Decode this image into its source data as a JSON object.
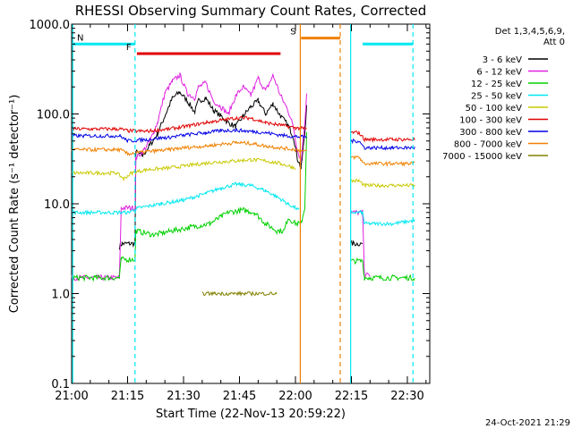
{
  "chart_data": {
    "type": "line",
    "title": "RHESSI Observing Summary Count Rates, Corrected",
    "ylabel": "Corrected Count Rate (s⁻¹ detector⁻¹)",
    "xlabel": "Start Time (22-Nov-13 20:59:22)",
    "footer": "24-Oct-2021 21:29",
    "yscale": "log",
    "ylim": [
      0.1,
      1000
    ],
    "y_ticks": [
      "1000.0",
      "100.0",
      "10.0",
      "1.0",
      "0.1"
    ],
    "y_tick_values": [
      1000,
      100,
      10,
      1,
      0.1
    ],
    "xlim_minutes": [
      0,
      96
    ],
    "x_tick_labels": [
      "21:00",
      "21:15",
      "21:30",
      "21:45",
      "22:00",
      "22:15",
      "22:30"
    ],
    "x_tick_minutes": [
      0,
      15,
      30,
      45,
      60,
      75,
      90
    ],
    "grid": false,
    "legend_position": "right",
    "legend_header": [
      "Det 1,3,4,5,6,9,",
      "Att 0"
    ],
    "series": [
      {
        "name": "3 - 6 keV",
        "color": "#000000",
        "points": [
          [
            12.8,
            3.3
          ],
          [
            13.5,
            3.6
          ],
          [
            17,
            3.6
          ],
          [
            17.2,
            38
          ],
          [
            19,
            34
          ],
          [
            21,
            45
          ],
          [
            23,
            60
          ],
          [
            25,
            95
          ],
          [
            27,
            150
          ],
          [
            29,
            175
          ],
          [
            31,
            140
          ],
          [
            33,
            105
          ],
          [
            34,
            140
          ],
          [
            36,
            150
          ],
          [
            38,
            110
          ],
          [
            40,
            95
          ],
          [
            42,
            80
          ],
          [
            44,
            72
          ],
          [
            46,
            95
          ],
          [
            48,
            120
          ],
          [
            50,
            140
          ],
          [
            52,
            100
          ],
          [
            54,
            130
          ],
          [
            56,
            95
          ],
          [
            58,
            75
          ],
          [
            59.5,
            55
          ],
          [
            60.5,
            32
          ],
          [
            61.5,
            25
          ],
          [
            62.5,
            60
          ],
          [
            63,
            130
          ]
        ],
        "after": [
          [
            74.8,
            3.6
          ],
          [
            78,
            3.6
          ]
        ]
      },
      {
        "name": "6 - 12 keV",
        "color": "#e020e0",
        "points": [
          [
            0,
            1.5
          ],
          [
            12.8,
            1.5
          ],
          [
            13.3,
            9
          ],
          [
            17,
            9
          ],
          [
            17.2,
            32
          ],
          [
            19,
            38
          ],
          [
            21,
            50
          ],
          [
            23,
            80
          ],
          [
            25,
            170
          ],
          [
            27,
            230
          ],
          [
            29,
            270
          ],
          [
            31,
            170
          ],
          [
            33,
            150
          ],
          [
            34,
            200
          ],
          [
            36,
            220
          ],
          [
            38,
            140
          ],
          [
            40,
            120
          ],
          [
            42,
            100
          ],
          [
            44,
            160
          ],
          [
            46,
            200
          ],
          [
            48,
            160
          ],
          [
            50,
            250
          ],
          [
            52,
            180
          ],
          [
            54,
            270
          ],
          [
            56,
            160
          ],
          [
            58,
            110
          ],
          [
            59.5,
            70
          ],
          [
            60.5,
            40
          ],
          [
            61.5,
            30
          ],
          [
            62.5,
            80
          ],
          [
            63,
            170
          ]
        ],
        "after": [
          [
            74.8,
            8
          ],
          [
            78,
            8
          ],
          [
            78.5,
            1.6
          ],
          [
            80,
            1.6
          ]
        ]
      },
      {
        "name": "12 - 25 keV",
        "color": "#00d000",
        "points": [
          [
            0,
            1.5
          ],
          [
            12.8,
            1.5
          ],
          [
            13.3,
            2.4
          ],
          [
            17,
            2.4
          ],
          [
            17.2,
            5
          ],
          [
            22,
            4.5
          ],
          [
            27,
            5
          ],
          [
            32,
            5.5
          ],
          [
            37,
            6
          ],
          [
            42,
            8
          ],
          [
            46,
            8.5
          ],
          [
            49,
            8
          ],
          [
            52,
            6
          ],
          [
            55,
            5
          ],
          [
            57,
            5
          ],
          [
            58,
            7
          ],
          [
            60,
            6
          ],
          [
            61.5,
            6
          ],
          [
            62.5,
            9
          ],
          [
            63,
            60
          ]
        ],
        "after": [
          [
            74.8,
            2.3
          ],
          [
            78,
            2.3
          ],
          [
            78.5,
            1.5
          ],
          [
            86,
            1.5
          ],
          [
            92,
            1.5
          ]
        ]
      },
      {
        "name": "25 - 50 keV",
        "color": "#00e8f0",
        "points": [
          [
            0,
            8
          ],
          [
            15,
            8
          ],
          [
            18,
            9
          ],
          [
            24,
            10
          ],
          [
            30,
            11
          ],
          [
            36,
            13
          ],
          [
            40,
            15
          ],
          [
            44,
            16.5
          ],
          [
            48,
            16
          ],
          [
            52,
            14
          ],
          [
            55,
            12
          ],
          [
            58,
            10
          ],
          [
            61,
            8.5
          ]
        ],
        "after": [
          [
            74.8,
            8
          ],
          [
            78,
            8
          ],
          [
            78.5,
            6
          ],
          [
            86,
            6
          ],
          [
            92,
            6.5
          ]
        ]
      },
      {
        "name": "50 - 100 keV",
        "color": "#c8c800",
        "points": [
          [
            0,
            22
          ],
          [
            12,
            22
          ],
          [
            14,
            19
          ],
          [
            16,
            22
          ],
          [
            20,
            24
          ],
          [
            26,
            25
          ],
          [
            32,
            27
          ],
          [
            38,
            29
          ],
          [
            44,
            30
          ],
          [
            48,
            31
          ],
          [
            52,
            30
          ],
          [
            56,
            28
          ],
          [
            60,
            25
          ]
        ],
        "after": [
          [
            74.8,
            18
          ],
          [
            77,
            18
          ],
          [
            78.5,
            16
          ],
          [
            86,
            16
          ],
          [
            92,
            16
          ]
        ]
      },
      {
        "name": "100 - 300 keV",
        "color": "#e00000",
        "points": [
          [
            0,
            68
          ],
          [
            13,
            68
          ],
          [
            15,
            65
          ],
          [
            20,
            64
          ],
          [
            26,
            68
          ],
          [
            30,
            72
          ],
          [
            36,
            80
          ],
          [
            40,
            85
          ],
          [
            44,
            90
          ],
          [
            48,
            90
          ],
          [
            52,
            80
          ],
          [
            56,
            75
          ],
          [
            60,
            70
          ],
          [
            63,
            68
          ]
        ],
        "after": [
          [
            74.8,
            62
          ],
          [
            77,
            62
          ],
          [
            78.5,
            52
          ],
          [
            86,
            52
          ],
          [
            92,
            52
          ]
        ]
      },
      {
        "name": "300 - 800 keV",
        "color": "#0000e8",
        "points": [
          [
            0,
            57
          ],
          [
            13,
            57
          ],
          [
            15,
            50
          ],
          [
            20,
            52
          ],
          [
            26,
            55
          ],
          [
            30,
            58
          ],
          [
            36,
            62
          ],
          [
            40,
            65
          ],
          [
            44,
            66
          ],
          [
            48,
            64
          ],
          [
            52,
            62
          ],
          [
            56,
            58
          ],
          [
            60,
            56
          ],
          [
            63,
            55
          ]
        ],
        "after": [
          [
            74.8,
            50
          ],
          [
            77,
            50
          ],
          [
            78.5,
            42
          ],
          [
            86,
            42
          ],
          [
            92,
            42
          ]
        ]
      },
      {
        "name": "800 - 7000 keV",
        "color": "#f08000",
        "points": [
          [
            0,
            40
          ],
          [
            13,
            40
          ],
          [
            15,
            36
          ],
          [
            20,
            38
          ],
          [
            26,
            40
          ],
          [
            30,
            42
          ],
          [
            36,
            44
          ],
          [
            40,
            46
          ],
          [
            44,
            48
          ],
          [
            48,
            47
          ],
          [
            52,
            44
          ],
          [
            56,
            42
          ],
          [
            60,
            40
          ],
          [
            63,
            38
          ]
        ],
        "after": [
          [
            74.8,
            33
          ],
          [
            77,
            33
          ],
          [
            78.5,
            28
          ],
          [
            86,
            28
          ],
          [
            92,
            28
          ]
        ]
      },
      {
        "name": "7000 - 15000 keV",
        "color": "#808000",
        "points": [
          [
            35,
            1.0
          ],
          [
            55,
            1.0
          ]
        ],
        "after": []
      }
    ],
    "flags": [
      {
        "label": "N",
        "color": "#00e8f0",
        "segments": [
          [
            0,
            17
          ],
          [
            78,
            91.5
          ]
        ],
        "y": 600
      },
      {
        "label": "F",
        "color": "#e00000",
        "segments": [
          [
            17.5,
            56
          ]
        ],
        "y": 470
      },
      {
        "label": "S",
        "color": "#f08000",
        "segments": [
          [
            61.5,
            72
          ]
        ],
        "y": 700
      }
    ],
    "vertical_lines": [
      {
        "minute": 0.3,
        "color": "#00e8f0",
        "style": "solid"
      },
      {
        "minute": 17,
        "color": "#00e8f0",
        "style": "dashed"
      },
      {
        "minute": 61.3,
        "color": "#f08000",
        "style": "solid"
      },
      {
        "minute": 72,
        "color": "#f08000",
        "style": "dashed"
      },
      {
        "minute": 74.8,
        "color": "#00e8f0",
        "style": "solid"
      },
      {
        "minute": 91.5,
        "color": "#00e8f0",
        "style": "dashed"
      }
    ]
  }
}
